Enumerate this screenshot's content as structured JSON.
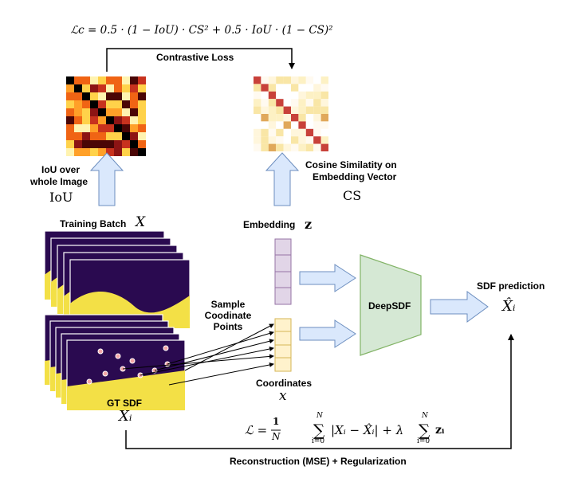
{
  "formulas": {
    "contrastive": "ℒc = 0.5 · (1 − IoU) · CS² + 0.5 · IoU · (1 − CS)²",
    "reconstruction": "ℒ = 1/N Σ |Xᵢ − X̂ᵢ| + λ Σ zᵢ",
    "recon_prefix": "ℒ =",
    "recon_one": "1",
    "recon_N": "N",
    "recon_sum_top": "N",
    "recon_sum_bottom": "i=0",
    "recon_abs": "|Xᵢ − X̂ᵢ| + λ",
    "recon_z": "zᵢ"
  },
  "labels": {
    "contrastive_loss": "Contrastive Loss",
    "iou_over_line1": "IoU over",
    "iou_over_line2": "whole Image",
    "iou_symbol": "IoU",
    "cosine_line1": "Cosine Similatity on",
    "cosine_line2": "Embedding Vector",
    "cs_symbol": "CS",
    "training_batch": "Training Batch",
    "training_symbol": "X",
    "embedding": "Embedding",
    "embedding_symbol": "z",
    "sample_line1": "Sample",
    "sample_line2": "Coodinate",
    "sample_line3": "Points",
    "deepsdf": "DeepSDF",
    "sdf_prediction": "SDF prediction",
    "sdf_symbol": "X̂ᵢ",
    "coordinates": "Coordinates",
    "coord_symbol": "x",
    "gt_sdf": "GT SDF",
    "gt_symbol": "Xᵢ",
    "reconstruction_caption": "Reconstruction (MSE) + Regularization"
  },
  "colors": {
    "arrow_fill": "#dae8fc",
    "arrow_stroke": "#6c8ebf",
    "deepsdf_fill": "#d5e8d4",
    "deepsdf_stroke": "#82b366",
    "embedding_fill": "#e1d5e7",
    "embedding_stroke": "#9673a6",
    "coord_fill": "#fff2cc",
    "coord_stroke": "#d6b656",
    "sdf_dark": "#2a0a50",
    "sdf_yellow": "#f3e046"
  }
}
